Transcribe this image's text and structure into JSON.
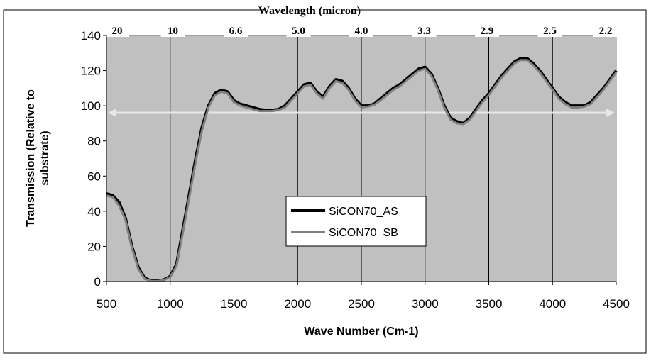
{
  "chart_data": {
    "type": "line",
    "title": "",
    "top_axis_title": "Wavelength (micron)",
    "top_tick_labels": [
      "20",
      "10",
      "6.6",
      "5.0",
      "4.0",
      "3.3",
      "2.9",
      "2.5",
      "2.2"
    ],
    "xlabel": "Wave Number (Cm-1)",
    "ylabel_lines": [
      "Transmission (Relative to",
      "substrate)"
    ],
    "xlim": [
      500,
      4500
    ],
    "ylim": [
      0,
      140
    ],
    "x_ticks": [
      500,
      1000,
      1500,
      2000,
      2500,
      3000,
      3500,
      4000,
      4500
    ],
    "y_ticks": [
      0,
      20,
      40,
      60,
      80,
      100,
      120,
      140
    ],
    "grid": "vertical",
    "legend_position": "center",
    "reference_line": {
      "y": 96,
      "x_range": [
        500,
        4500
      ],
      "style": "double-arrow",
      "color": "#e8e8e8"
    },
    "series": [
      {
        "name": "SiCON70_AS",
        "color": "#000000",
        "x": [
          500,
          550,
          600,
          650,
          700,
          750,
          800,
          850,
          900,
          950,
          1000,
          1050,
          1100,
          1150,
          1200,
          1250,
          1300,
          1350,
          1400,
          1450,
          1500,
          1550,
          1600,
          1650,
          1700,
          1750,
          1800,
          1850,
          1900,
          1950,
          2000,
          2050,
          2100,
          2150,
          2200,
          2250,
          2300,
          2350,
          2400,
          2450,
          2500,
          2550,
          2600,
          2650,
          2700,
          2750,
          2800,
          2850,
          2900,
          2950,
          3000,
          3050,
          3100,
          3150,
          3200,
          3250,
          3300,
          3350,
          3400,
          3450,
          3500,
          3550,
          3600,
          3650,
          3700,
          3750,
          3800,
          3850,
          3900,
          3950,
          4000,
          4050,
          4100,
          4150,
          4200,
          4250,
          4300,
          4350,
          4400,
          4450,
          4500
        ],
        "y": [
          50,
          49,
          45,
          36,
          20,
          8,
          2,
          0.5,
          0.5,
          1,
          3,
          10,
          30,
          50,
          70,
          88,
          100,
          107,
          109,
          108,
          103,
          101,
          100,
          99,
          98,
          97.5,
          97.5,
          98,
          100,
          104,
          108,
          112,
          113,
          108,
          105,
          111,
          115,
          114,
          110,
          104,
          100,
          100,
          101,
          104,
          107,
          110,
          112,
          115,
          118,
          121,
          122,
          118,
          110,
          100,
          93,
          91,
          90,
          93,
          98,
          103,
          107,
          112,
          117,
          121,
          125,
          127,
          127,
          124,
          120,
          115,
          110,
          105,
          102,
          100,
          100,
          100,
          102,
          106,
          110,
          115,
          120
        ]
      },
      {
        "name": "SiCON70_SB",
        "color": "#808080",
        "x": [
          500,
          550,
          600,
          650,
          700,
          750,
          800,
          850,
          900,
          950,
          1000,
          1050,
          1100,
          1150,
          1200,
          1250,
          1300,
          1350,
          1400,
          1450,
          1500,
          1550,
          1600,
          1650,
          1700,
          1750,
          1800,
          1850,
          1900,
          1950,
          2000,
          2050,
          2100,
          2150,
          2200,
          2250,
          2300,
          2350,
          2400,
          2450,
          2500,
          2550,
          2600,
          2650,
          2700,
          2750,
          2800,
          2850,
          2900,
          2950,
          3000,
          3050,
          3100,
          3150,
          3200,
          3250,
          3300,
          3350,
          3400,
          3450,
          3500,
          3550,
          3600,
          3650,
          3700,
          3750,
          3800,
          3850,
          3900,
          3950,
          4000,
          4050,
          4100,
          4150,
          4200,
          4250,
          4300,
          4350,
          4400,
          4450,
          4500
        ],
        "y": [
          49,
          48,
          43,
          35,
          19,
          7,
          1.5,
          0.3,
          0.3,
          0.8,
          2.5,
          9,
          28,
          48,
          68,
          86,
          99,
          106,
          108,
          107,
          102,
          100,
          99,
          98,
          97,
          97,
          97,
          97.5,
          99,
          103,
          107,
          111,
          112,
          107,
          104,
          110,
          114,
          113,
          109,
          103,
          99,
          99.5,
          100.5,
          103,
          106,
          109,
          111,
          114,
          117,
          120,
          121,
          117,
          109,
          99,
          92,
          90,
          89.5,
          92,
          97,
          102,
          106,
          111,
          116,
          120,
          124,
          126,
          126,
          123,
          119,
          114,
          109,
          104,
          101,
          99,
          99,
          99.5,
          101,
          105,
          109,
          114,
          119
        ]
      }
    ]
  }
}
